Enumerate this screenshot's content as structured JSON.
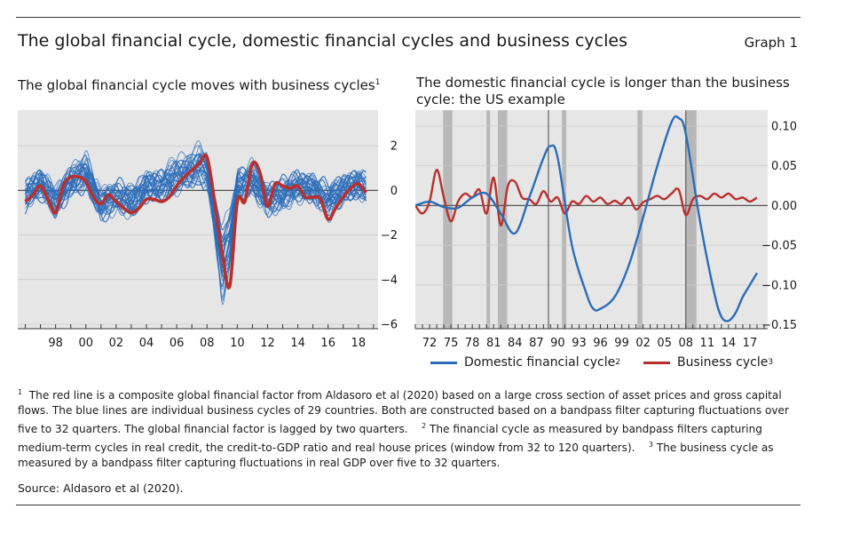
{
  "header": {
    "title": "The global financial cycle, domestic financial cycles and business cycles",
    "graph_label": "Graph 1"
  },
  "left_panel": {
    "subtitle": "The global financial cycle moves with business cycles",
    "subtitle_sup": "1"
  },
  "right_panel": {
    "subtitle_line1": "The domestic financial cycle is longer than the business",
    "subtitle_line2": "cycle: the US example"
  },
  "legend": {
    "domestic": "Domestic financial cycle",
    "domestic_sup": "2",
    "business": "Business cycle",
    "business_sup": "3"
  },
  "footnotes": {
    "m1": "1",
    "t1": "The red line is a composite global financial factor from Aldasoro et al (2020) based on a large cross section of asset prices and gross capital flows. The blue lines are individual business cycles of 29 countries. Both are constructed based on a bandpass filter capturing fluctuations over five to 32 quarters. The global financial factor is lagged by two quarters.",
    "m2": "2",
    "t2": "The financial cycle as measured by bandpass filters capturing medium-term cycles in real credit, the credit-to-GDP ratio and real house prices (window from 32 to 120 quarters).",
    "m3": "3",
    "t3": "The business cycle as measured by a bandpass filter capturing fluctuations in real GDP over five to 32 quarters."
  },
  "source": "Source: Aldasoro et al (2020).",
  "colors": {
    "blue": "#2b6cb8",
    "red": "#b8302e",
    "grid": "#cccccc",
    "bg": "#e6e6e6",
    "shade": "#b8b8b8",
    "vline": "#444444"
  },
  "chart_data": [
    {
      "type": "line",
      "title": "The global financial cycle moves with business cycles",
      "xlim": [
        1995.5,
        2019.3
      ],
      "ylim": [
        -6.2,
        3.6
      ],
      "x_ticks": [
        1998,
        2000,
        2002,
        2004,
        2006,
        2008,
        2010,
        2012,
        2014,
        2016,
        2018
      ],
      "x_tick_labels": [
        "98",
        "00",
        "02",
        "04",
        "06",
        "08",
        "10",
        "12",
        "14",
        "16",
        "18"
      ],
      "y_ticks": [
        2,
        0,
        -2,
        -4,
        -6
      ],
      "y_tick_labels": [
        "2",
        "0",
        "−2",
        "−4",
        "−6"
      ],
      "y_axis_side": "right",
      "grid": "horizontal",
      "series": [
        {
          "name": "Global financial factor",
          "color": "#b8302e",
          "x": [
            1996.0,
            1996.5,
            1997.0,
            1997.5,
            1998.0,
            1998.5,
            1999.0,
            1999.5,
            2000.0,
            2000.5,
            2001.0,
            2001.5,
            2002.0,
            2002.5,
            2003.0,
            2003.5,
            2004.0,
            2004.5,
            2005.0,
            2005.5,
            2006.0,
            2006.5,
            2007.0,
            2007.5,
            2008.0,
            2008.5,
            2009.0,
            2009.5,
            2010.0,
            2010.5,
            2011.0,
            2011.5,
            2012.0,
            2012.5,
            2013.0,
            2013.5,
            2014.0,
            2014.5,
            2015.0,
            2015.5,
            2016.0,
            2016.5,
            2017.0,
            2017.5,
            2018.0,
            2018.5
          ],
          "y": [
            -0.5,
            -0.2,
            0.2,
            -0.4,
            -1.0,
            0.2,
            0.6,
            0.6,
            0.4,
            -0.3,
            -0.6,
            -0.2,
            -0.5,
            -0.8,
            -1.0,
            -0.8,
            -0.4,
            -0.4,
            -0.5,
            -0.3,
            0.2,
            0.6,
            0.9,
            1.2,
            1.5,
            -0.5,
            -2.8,
            -4.3,
            -0.5,
            -0.5,
            1.2,
            0.8,
            -0.7,
            0.3,
            0.2,
            0.1,
            0.2,
            -0.3,
            -0.3,
            -0.4,
            -1.3,
            -0.8,
            -0.3,
            0.1,
            0.3,
            -0.1
          ]
        },
        {
          "name": "Country business cycles (29)",
          "color": "#2b6cb8",
          "count": 29,
          "x": [
            1996.0,
            1997.0,
            1998.0,
            1999.0,
            2000.0,
            2001.0,
            2002.0,
            2003.0,
            2004.0,
            2005.0,
            2006.0,
            2007.0,
            2007.5,
            2008.0,
            2008.5,
            2009.0,
            2009.5,
            2010.0,
            2011.0,
            2012.0,
            2013.0,
            2014.0,
            2015.0,
            2016.0,
            2017.0,
            2018.0,
            2018.5
          ],
          "y_center": [
            -0.2,
            0.3,
            -0.5,
            0.4,
            0.8,
            -0.6,
            -0.3,
            -0.5,
            0.2,
            0.2,
            0.7,
            0.9,
            1.2,
            0.8,
            -1.2,
            -3.2,
            -2.2,
            0.2,
            0.5,
            -0.4,
            -0.2,
            0.2,
            0.1,
            -0.5,
            0.1,
            0.3,
            0.1
          ]
        }
      ]
    },
    {
      "type": "line",
      "title": "The domestic financial cycle is longer than the business cycle: the US example",
      "xlim": [
        1970.0,
        2019.5
      ],
      "ylim": [
        -0.155,
        0.12
      ],
      "x_ticks": [
        1972,
        1975,
        1978,
        1981,
        1984,
        1987,
        1990,
        1993,
        1996,
        1999,
        2002,
        2005,
        2008,
        2011,
        2014,
        2017
      ],
      "x_tick_labels": [
        "72",
        "75",
        "78",
        "81",
        "84",
        "87",
        "90",
        "93",
        "96",
        "99",
        "02",
        "05",
        "08",
        "11",
        "14",
        "17"
      ],
      "y_ticks": [
        0.1,
        0.05,
        0.0,
        -0.05,
        -0.1,
        -0.15
      ],
      "y_tick_labels": [
        "0.10",
        "0.05",
        "0.00",
        "−0.05",
        "−0.10",
        "−0.15"
      ],
      "y_axis_side": "right",
      "grid": "horizontal",
      "recession_shading": [
        [
          1973.9,
          1975.2
        ],
        [
          1980.0,
          1980.5
        ],
        [
          1981.6,
          1982.9
        ],
        [
          1990.6,
          1991.2
        ],
        [
          2001.2,
          2001.9
        ],
        [
          2008.0,
          2009.5
        ]
      ],
      "vertical_lines": [
        1988.7,
        2008.0
      ],
      "series": [
        {
          "name": "Domestic financial cycle",
          "color": "#2b6cb8",
          "x": [
            1970,
            1972,
            1974,
            1976,
            1978,
            1980,
            1982,
            1984,
            1986,
            1988,
            1989,
            1990,
            1992,
            1994,
            1995,
            1996,
            1998,
            2000,
            2002,
            2004,
            2006,
            2007,
            2008,
            2010,
            2012,
            2013,
            2014,
            2015,
            2016,
            2017,
            2018
          ],
          "y": [
            0.0,
            0.005,
            -0.002,
            -0.003,
            0.01,
            0.015,
            -0.01,
            -0.035,
            0.01,
            0.06,
            0.075,
            0.06,
            -0.05,
            -0.11,
            -0.13,
            -0.13,
            -0.115,
            -0.075,
            -0.015,
            0.05,
            0.105,
            0.11,
            0.09,
            -0.02,
            -0.11,
            -0.14,
            -0.145,
            -0.135,
            -0.115,
            -0.1,
            -0.085
          ]
        },
        {
          "name": "Business cycle",
          "color": "#b8302e",
          "x": [
            1970,
            1971,
            1972,
            1973,
            1974,
            1975,
            1976,
            1977,
            1978,
            1979,
            1980,
            1981,
            1982,
            1983,
            1984,
            1985,
            1986,
            1987,
            1988,
            1989,
            1990,
            1991,
            1992,
            1993,
            1994,
            1995,
            1996,
            1997,
            1998,
            1999,
            2000,
            2001,
            2002,
            2003,
            2004,
            2005,
            2006,
            2007,
            2008,
            2009,
            2010,
            2011,
            2012,
            2013,
            2014,
            2015,
            2016,
            2017,
            2018
          ],
          "y": [
            0.0,
            -0.01,
            0.005,
            0.045,
            0.01,
            -0.02,
            0.005,
            0.015,
            0.01,
            0.02,
            -0.01,
            0.035,
            -0.025,
            0.025,
            0.03,
            0.01,
            0.008,
            0.002,
            0.018,
            0.005,
            0.01,
            -0.01,
            0.005,
            0.002,
            0.012,
            0.005,
            0.01,
            0.002,
            0.006,
            0.002,
            0.01,
            -0.005,
            0.004,
            0.008,
            0.012,
            0.008,
            0.015,
            0.02,
            -0.012,
            0.008,
            0.012,
            0.008,
            0.015,
            0.01,
            0.015,
            0.008,
            0.01,
            0.005,
            0.01
          ]
        }
      ]
    }
  ]
}
